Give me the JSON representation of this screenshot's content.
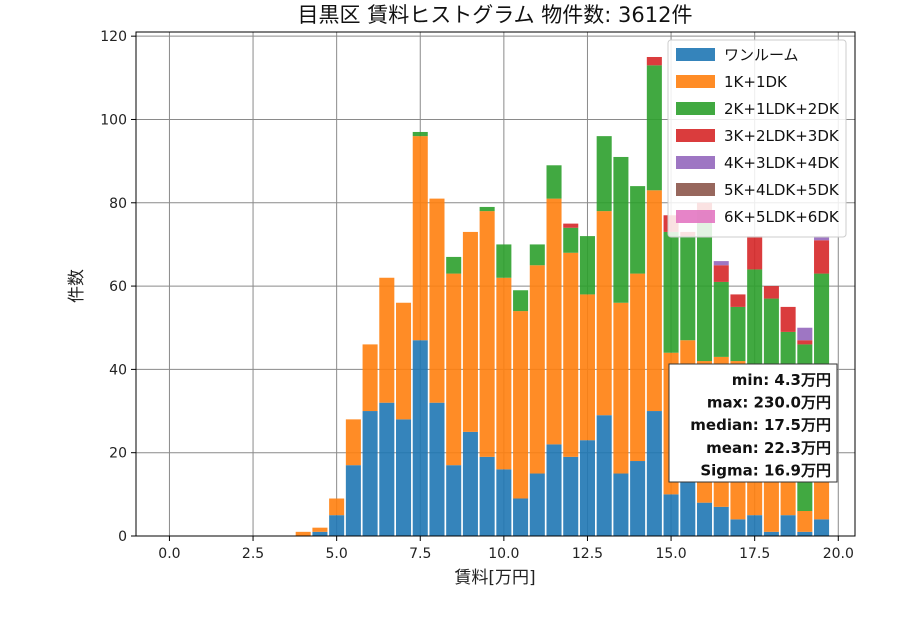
{
  "chart_data": {
    "type": "bar",
    "stacked": true,
    "title": "目黒区 賃料ヒストグラム 物件数: 3612件",
    "xlabel": "賃料[万円]",
    "ylabel": "件数",
    "xlim": [
      -1,
      20.5
    ],
    "ylim": [
      0,
      121
    ],
    "bin_width": 0.5,
    "x_ticks": [
      "0.0",
      "2.5",
      "5.0",
      "7.5",
      "10.0",
      "12.5",
      "15.0",
      "17.5",
      "20.0"
    ],
    "y_ticks": [
      "0",
      "20",
      "40",
      "60",
      "80",
      "100",
      "120"
    ],
    "grid": true,
    "legend_position": "top-right",
    "x": [
      4.0,
      4.5,
      5.0,
      5.5,
      6.0,
      6.5,
      7.0,
      7.5,
      8.0,
      8.5,
      9.0,
      9.5,
      10.0,
      10.5,
      11.0,
      11.5,
      12.0,
      12.5,
      13.0,
      13.5,
      14.0,
      14.5,
      15.0,
      15.5,
      16.0,
      16.5,
      17.0,
      17.5,
      18.0,
      18.5,
      19.0,
      19.5
    ],
    "series": [
      {
        "name": "ワンルーム",
        "color": "#1f77b4",
        "values": [
          0,
          1,
          5,
          17,
          30,
          32,
          28,
          47,
          32,
          17,
          25,
          19,
          16,
          9,
          15,
          22,
          19,
          23,
          29,
          15,
          18,
          30,
          10,
          15,
          8,
          7,
          4,
          5,
          1,
          5,
          1,
          4
        ]
      },
      {
        "name": "1K+1DK",
        "color": "#ff7f0e",
        "values": [
          1,
          1,
          4,
          11,
          16,
          30,
          28,
          49,
          49,
          46,
          48,
          59,
          46,
          45,
          50,
          59,
          49,
          35,
          49,
          41,
          45,
          53,
          34,
          32,
          34,
          36,
          38,
          35,
          39,
          35,
          5,
          15
        ]
      },
      {
        "name": "2K+1LDK+2DK",
        "color": "#2ca02c",
        "values": [
          0,
          0,
          0,
          0,
          0,
          0,
          0,
          1,
          0,
          4,
          0,
          1,
          8,
          5,
          5,
          8,
          6,
          14,
          18,
          35,
          21,
          30,
          29,
          25,
          36,
          18,
          13,
          24,
          17,
          9,
          40,
          44
        ]
      },
      {
        "name": "3K+2LDK+3DK",
        "color": "#d62728",
        "values": [
          0,
          0,
          0,
          0,
          0,
          0,
          0,
          0,
          0,
          0,
          0,
          0,
          0,
          0,
          0,
          0,
          1,
          0,
          0,
          0,
          0,
          2,
          4,
          1,
          2,
          4,
          3,
          8,
          3,
          6,
          1,
          8
        ]
      },
      {
        "name": "4K+3LDK+4DK",
        "color": "#9467bd",
        "values": [
          0,
          0,
          0,
          0,
          0,
          0,
          0,
          0,
          0,
          0,
          0,
          0,
          0,
          0,
          0,
          0,
          0,
          0,
          0,
          0,
          0,
          0,
          0,
          0,
          0,
          1,
          0,
          0,
          0,
          0,
          3,
          1
        ]
      },
      {
        "name": "5K+4LDK+5DK",
        "color": "#8c564b",
        "values": [
          0,
          0,
          0,
          0,
          0,
          0,
          0,
          0,
          0,
          0,
          0,
          0,
          0,
          0,
          0,
          0,
          0,
          0,
          0,
          0,
          0,
          0,
          0,
          0,
          0,
          0,
          0,
          0,
          0,
          0,
          0,
          0
        ]
      },
      {
        "name": "6K+5LDK+6DK",
        "color": "#e377c2",
        "values": [
          0,
          0,
          0,
          0,
          0,
          0,
          0,
          0,
          0,
          0,
          0,
          0,
          0,
          0,
          0,
          0,
          0,
          0,
          0,
          0,
          0,
          0,
          0,
          0,
          0,
          0,
          0,
          0,
          0,
          0,
          0,
          0
        ]
      }
    ],
    "stats": [
      "min: 4.3万円",
      "max: 230.0万円",
      "median: 17.5万円",
      "mean: 22.3万円",
      "Sigma: 16.9万円"
    ]
  }
}
